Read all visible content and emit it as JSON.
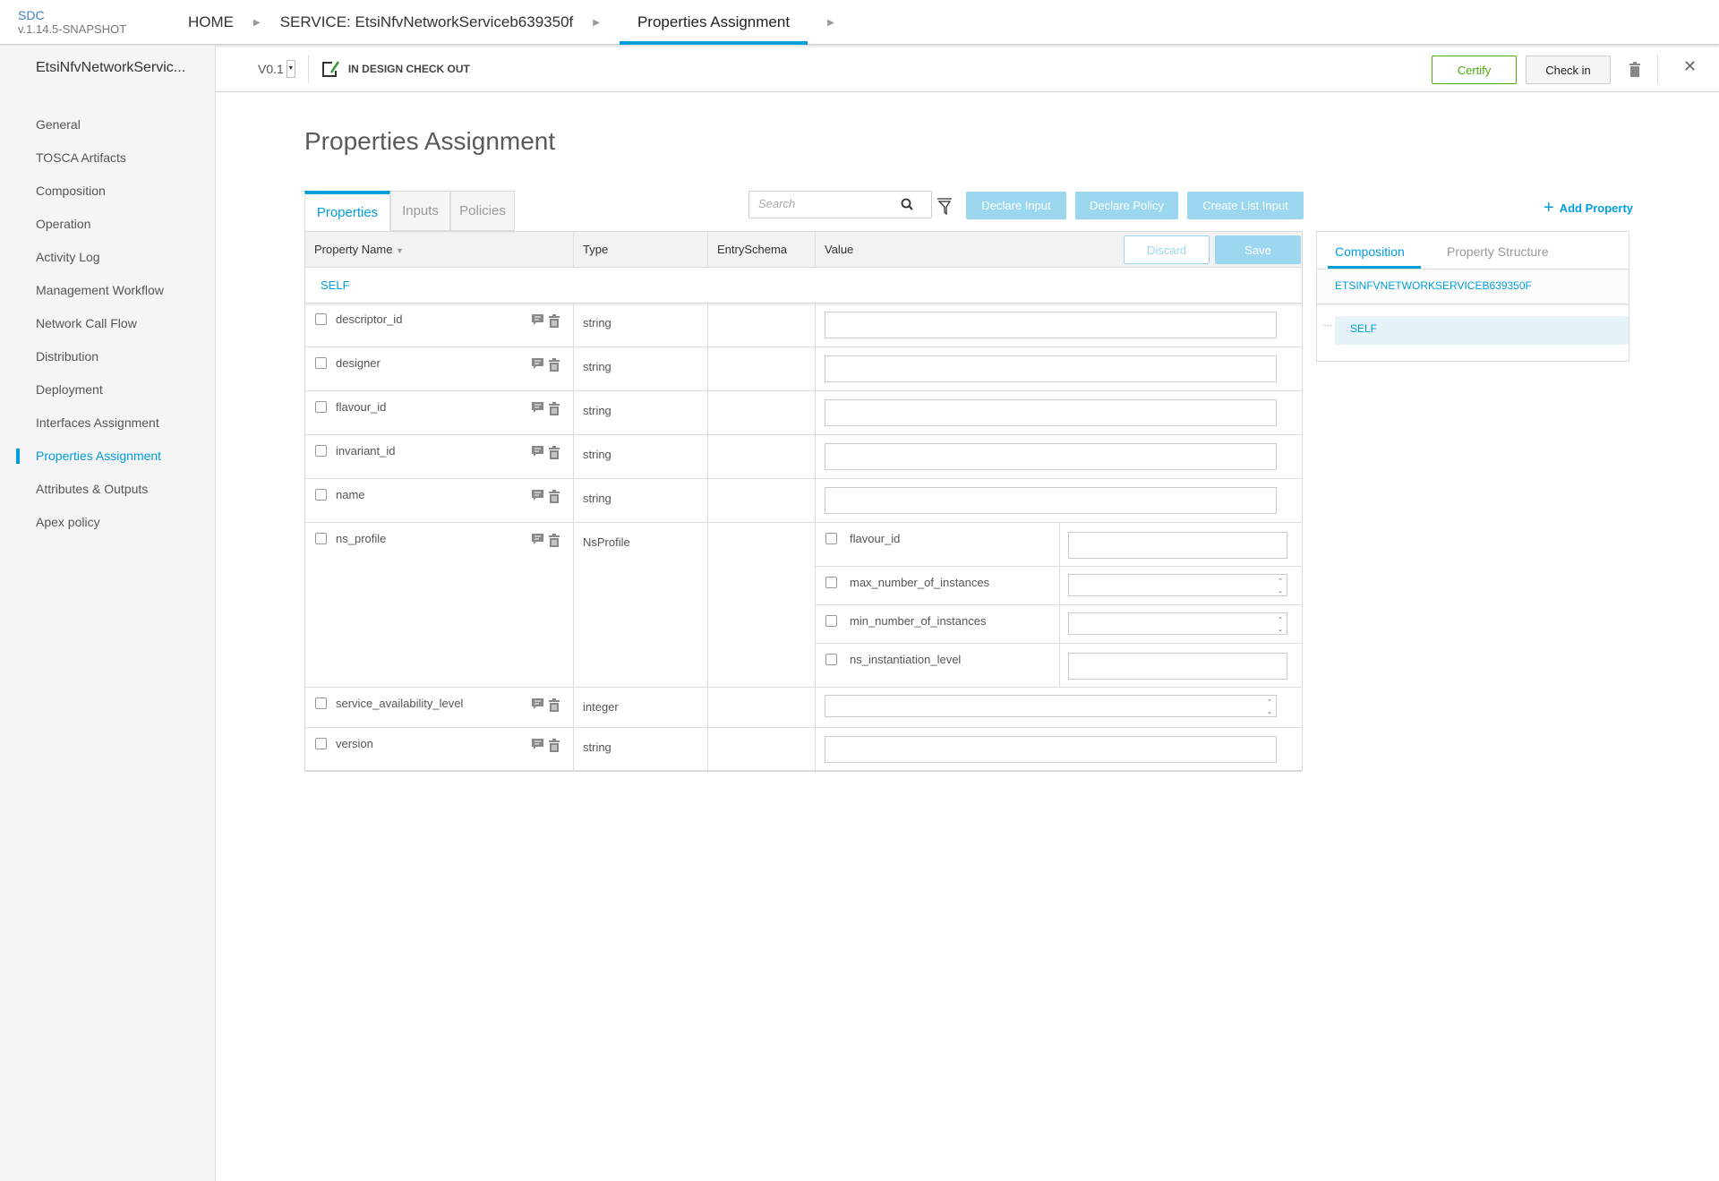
{
  "app": {
    "name": "SDC",
    "version": "v.1.14.5-SNAPSHOT"
  },
  "breadcrumb": [
    "HOME",
    "SERVICE: EtsiNfvNetworkServiceb639350f",
    "Properties Assignment"
  ],
  "subbar": {
    "service_name": "EtsiNfvNetworkServic...",
    "version": "V0.1",
    "status": "IN DESIGN CHECK OUT",
    "certify_label": "Certify",
    "checkin_label": "Check in"
  },
  "sidebar": {
    "items": [
      {
        "label": "General"
      },
      {
        "label": "TOSCA Artifacts"
      },
      {
        "label": "Composition"
      },
      {
        "label": "Operation"
      },
      {
        "label": "Activity Log"
      },
      {
        "label": "Management Workflow"
      },
      {
        "label": "Network Call Flow"
      },
      {
        "label": "Distribution"
      },
      {
        "label": "Deployment"
      },
      {
        "label": "Interfaces Assignment"
      },
      {
        "label": "Properties Assignment",
        "active": true
      },
      {
        "label": "Attributes & Outputs"
      },
      {
        "label": "Apex policy"
      }
    ]
  },
  "main": {
    "title": "Properties Assignment",
    "tabs": [
      {
        "label": "Properties",
        "active": true
      },
      {
        "label": "Inputs"
      },
      {
        "label": "Policies"
      }
    ],
    "search_placeholder": "Search",
    "declare_input": "Declare Input",
    "declare_policy": "Declare Policy",
    "create_list_input": "Create List Input",
    "add_property": "Add Property",
    "discard": "Discard",
    "save": "Save",
    "columns": [
      "Property Name",
      "Type",
      "EntrySchema",
      "Value"
    ],
    "group": "SELF",
    "rows": [
      {
        "name": "descriptor_id",
        "type": "string",
        "value": ""
      },
      {
        "name": "designer",
        "type": "string",
        "value": ""
      },
      {
        "name": "flavour_id",
        "type": "string",
        "value": ""
      },
      {
        "name": "invariant_id",
        "type": "string",
        "value": ""
      },
      {
        "name": "name",
        "type": "string",
        "value": ""
      },
      {
        "name": "ns_profile",
        "type": "NsProfile",
        "children": [
          {
            "name": "flavour_id",
            "value": ""
          },
          {
            "name": "max_number_of_instances",
            "value": "",
            "numeric": true
          },
          {
            "name": "min_number_of_instances",
            "value": "",
            "numeric": true
          },
          {
            "name": "ns_instantiation_level",
            "value": ""
          }
        ]
      },
      {
        "name": "service_availability_level",
        "type": "integer",
        "value": "",
        "numeric": true
      },
      {
        "name": "version",
        "type": "string",
        "value": ""
      }
    ]
  },
  "right_panel": {
    "tabs": [
      {
        "label": "Composition",
        "active": true
      },
      {
        "label": "Property Structure"
      }
    ],
    "component": "ETSINFVNETWORKSERVICEB639350F",
    "tree_item": "SELF"
  },
  "colors": {
    "accent": "#009fdb",
    "certify": "#4ca90c",
    "action_disabled": "#9bd8f0"
  }
}
